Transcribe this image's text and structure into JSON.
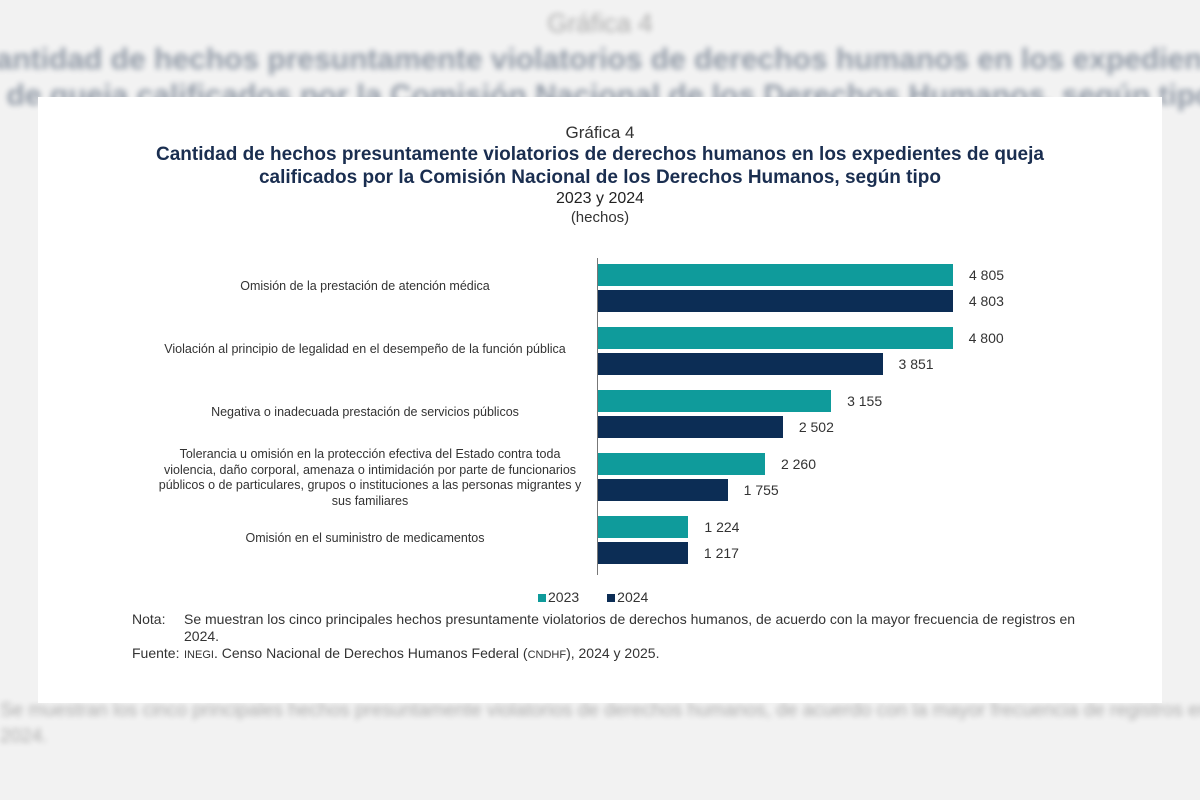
{
  "chart_data": {
    "type": "bar",
    "orientation": "horizontal",
    "header": "Gráfica 4",
    "title": "Cantidad de hechos presuntamente violatorios de derechos humanos en los expedientes de queja calificados por la Comisión Nacional de los Derechos Humanos, según tipo",
    "subtitle": "2023 y 2024",
    "units": "(hechos)",
    "categories": [
      "Omisión de la prestación de atención médica",
      "Violación al principio de legalidad en el desempeño de la función pública",
      "Negativa o inadecuada prestación de servicios públicos",
      "Tolerancia u omisión en la protección efectiva del Estado contra toda violencia, daño corporal, amenaza o intimidación por parte de funcionarios públicos o de particulares, grupos o instituciones a las personas migrantes y sus familiares",
      "Omisión en el suministro de medicamentos"
    ],
    "series": [
      {
        "name": "2023",
        "color": "#0f9b9b",
        "values": [
          4805,
          4800,
          3155,
          2260,
          1224
        ],
        "labels": [
          "4 805",
          "4 800",
          "3 155",
          "2 260",
          "1 224"
        ]
      },
      {
        "name": "2024",
        "color": "#0c2d55",
        "values": [
          4803,
          3851,
          2502,
          1755,
          1217
        ],
        "labels": [
          "4 803",
          "3 851",
          "2 502",
          "1 755",
          "1 217"
        ]
      }
    ],
    "legend": "bottom",
    "grid": false
  },
  "notes": {
    "nota_label": "Nota:",
    "nota_text": "Se muestran los cinco principales hechos presuntamente violatorios de derechos humanos, de acuerdo con la mayor frecuencia de registros en 2024.",
    "fuente_label": "Fuente:",
    "fuente_org": "INEGI",
    "fuente_text_1": ". Censo Nacional de Derechos Humanos Federal (",
    "fuente_abbr": "CNDHF",
    "fuente_text_2": "), 2024 y 2025."
  }
}
